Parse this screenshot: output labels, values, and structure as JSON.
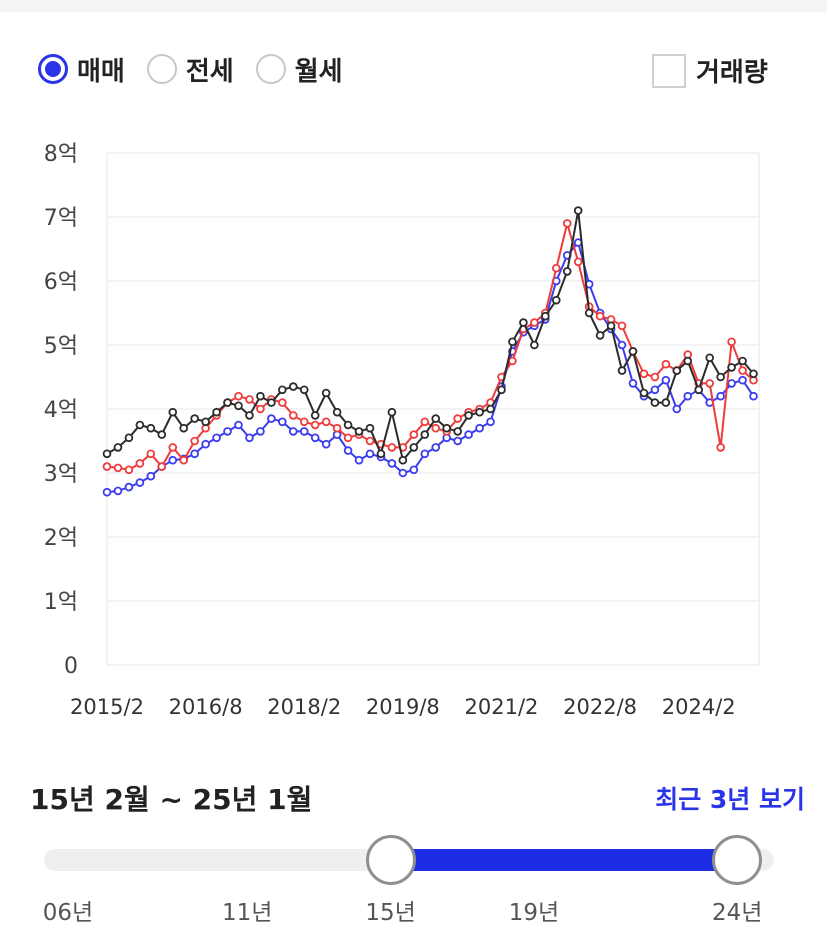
{
  "tabs": [
    {
      "label": "매매",
      "selected": true
    },
    {
      "label": "전세",
      "selected": false
    },
    {
      "label": "월세",
      "selected": false
    }
  ],
  "volume_toggle": {
    "label": "거래량",
    "checked": false
  },
  "colors": {
    "accent": "#2a34e8",
    "slider_fill": "#1d2de6",
    "series_blue": "#3b3bef",
    "series_red": "#ef3b3b",
    "series_black": "#2b2b2b"
  },
  "chart_data": {
    "type": "line",
    "title": "",
    "xlabel": "",
    "ylabel": "",
    "y_unit": "억",
    "ylim": [
      0,
      8
    ],
    "y_ticks": [
      0,
      1,
      2,
      3,
      4,
      5,
      6,
      7,
      8
    ],
    "y_tick_labels": [
      "0",
      "1억",
      "2억",
      "3억",
      "4억",
      "5억",
      "6억",
      "7억",
      "8억"
    ],
    "x_range": [
      "2015-02",
      "2025-01"
    ],
    "x_ticks": [
      "2015-02",
      "2016-08",
      "2018-02",
      "2019-08",
      "2021-02",
      "2022-08",
      "2024-02"
    ],
    "x_tick_labels": [
      "2015/2",
      "2016/8",
      "2018/2",
      "2019/8",
      "2021/2",
      "2022/8",
      "2024/2"
    ],
    "grid": true,
    "legend": "none",
    "series": [
      {
        "color": "#3b3bef",
        "points": [
          [
            "2015-02",
            2.7
          ],
          [
            "2015-04",
            2.72
          ],
          [
            "2015-06",
            2.78
          ],
          [
            "2015-08",
            2.85
          ],
          [
            "2015-10",
            2.95
          ],
          [
            "2015-12",
            3.1
          ],
          [
            "2016-02",
            3.2
          ],
          [
            "2016-04",
            3.22
          ],
          [
            "2016-06",
            3.3
          ],
          [
            "2016-08",
            3.45
          ],
          [
            "2016-10",
            3.55
          ],
          [
            "2016-12",
            3.65
          ],
          [
            "2017-02",
            3.75
          ],
          [
            "2017-04",
            3.55
          ],
          [
            "2017-06",
            3.65
          ],
          [
            "2017-08",
            3.85
          ],
          [
            "2017-10",
            3.8
          ],
          [
            "2017-12",
            3.65
          ],
          [
            "2018-02",
            3.65
          ],
          [
            "2018-04",
            3.55
          ],
          [
            "2018-06",
            3.45
          ],
          [
            "2018-08",
            3.6
          ],
          [
            "2018-10",
            3.35
          ],
          [
            "2018-12",
            3.2
          ],
          [
            "2019-02",
            3.3
          ],
          [
            "2019-04",
            3.25
          ],
          [
            "2019-06",
            3.15
          ],
          [
            "2019-08",
            3.0
          ],
          [
            "2019-10",
            3.05
          ],
          [
            "2019-12",
            3.3
          ],
          [
            "2020-02",
            3.4
          ],
          [
            "2020-04",
            3.55
          ],
          [
            "2020-06",
            3.5
          ],
          [
            "2020-08",
            3.6
          ],
          [
            "2020-10",
            3.7
          ],
          [
            "2020-12",
            3.8
          ],
          [
            "2021-02",
            4.35
          ],
          [
            "2021-04",
            4.9
          ],
          [
            "2021-06",
            5.2
          ],
          [
            "2021-08",
            5.3
          ],
          [
            "2021-10",
            5.4
          ],
          [
            "2021-12",
            6.0
          ],
          [
            "2022-02",
            6.4
          ],
          [
            "2022-04",
            6.6
          ],
          [
            "2022-06",
            5.95
          ],
          [
            "2022-08",
            5.5
          ],
          [
            "2022-10",
            5.25
          ],
          [
            "2022-12",
            5.0
          ],
          [
            "2023-02",
            4.4
          ],
          [
            "2023-04",
            4.2
          ],
          [
            "2023-06",
            4.3
          ],
          [
            "2023-08",
            4.45
          ],
          [
            "2023-10",
            4.0
          ],
          [
            "2023-12",
            4.2
          ],
          [
            "2024-02",
            4.3
          ],
          [
            "2024-04",
            4.1
          ],
          [
            "2024-06",
            4.2
          ],
          [
            "2024-08",
            4.4
          ],
          [
            "2024-10",
            4.45
          ],
          [
            "2024-12",
            4.2
          ]
        ]
      },
      {
        "color": "#ef3b3b",
        "points": [
          [
            "2015-02",
            3.1
          ],
          [
            "2015-04",
            3.08
          ],
          [
            "2015-06",
            3.05
          ],
          [
            "2015-08",
            3.15
          ],
          [
            "2015-10",
            3.3
          ],
          [
            "2015-12",
            3.1
          ],
          [
            "2016-02",
            3.4
          ],
          [
            "2016-04",
            3.2
          ],
          [
            "2016-06",
            3.5
          ],
          [
            "2016-08",
            3.7
          ],
          [
            "2016-10",
            3.9
          ],
          [
            "2016-12",
            4.1
          ],
          [
            "2017-02",
            4.2
          ],
          [
            "2017-04",
            4.15
          ],
          [
            "2017-06",
            4.0
          ],
          [
            "2017-08",
            4.15
          ],
          [
            "2017-10",
            4.1
          ],
          [
            "2017-12",
            3.9
          ],
          [
            "2018-02",
            3.8
          ],
          [
            "2018-04",
            3.75
          ],
          [
            "2018-06",
            3.8
          ],
          [
            "2018-08",
            3.7
          ],
          [
            "2018-10",
            3.55
          ],
          [
            "2018-12",
            3.6
          ],
          [
            "2019-02",
            3.5
          ],
          [
            "2019-04",
            3.45
          ],
          [
            "2019-06",
            3.4
          ],
          [
            "2019-08",
            3.4
          ],
          [
            "2019-10",
            3.6
          ],
          [
            "2019-12",
            3.8
          ],
          [
            "2020-02",
            3.7
          ],
          [
            "2020-04",
            3.65
          ],
          [
            "2020-06",
            3.85
          ],
          [
            "2020-08",
            3.95
          ],
          [
            "2020-10",
            4.0
          ],
          [
            "2020-12",
            4.1
          ],
          [
            "2021-02",
            4.5
          ],
          [
            "2021-04",
            4.75
          ],
          [
            "2021-06",
            5.25
          ],
          [
            "2021-08",
            5.35
          ],
          [
            "2021-10",
            5.5
          ],
          [
            "2021-12",
            6.2
          ],
          [
            "2022-02",
            6.9
          ],
          [
            "2022-04",
            6.3
          ],
          [
            "2022-06",
            5.6
          ],
          [
            "2022-08",
            5.45
          ],
          [
            "2022-10",
            5.4
          ],
          [
            "2022-12",
            5.3
          ],
          [
            "2023-02",
            4.9
          ],
          [
            "2023-04",
            4.55
          ],
          [
            "2023-06",
            4.5
          ],
          [
            "2023-08",
            4.7
          ],
          [
            "2023-10",
            4.6
          ],
          [
            "2023-12",
            4.85
          ],
          [
            "2024-02",
            4.4
          ],
          [
            "2024-04",
            4.4
          ],
          [
            "2024-06",
            3.4
          ],
          [
            "2024-08",
            5.05
          ],
          [
            "2024-10",
            4.6
          ],
          [
            "2024-12",
            4.45
          ]
        ]
      },
      {
        "color": "#2b2b2b",
        "points": [
          [
            "2015-02",
            3.3
          ],
          [
            "2015-04",
            3.4
          ],
          [
            "2015-06",
            3.55
          ],
          [
            "2015-08",
            3.75
          ],
          [
            "2015-10",
            3.7
          ],
          [
            "2015-12",
            3.6
          ],
          [
            "2016-02",
            3.95
          ],
          [
            "2016-04",
            3.7
          ],
          [
            "2016-06",
            3.85
          ],
          [
            "2016-08",
            3.8
          ],
          [
            "2016-10",
            3.95
          ],
          [
            "2016-12",
            4.1
          ],
          [
            "2017-02",
            4.05
          ],
          [
            "2017-04",
            3.9
          ],
          [
            "2017-06",
            4.2
          ],
          [
            "2017-08",
            4.1
          ],
          [
            "2017-10",
            4.3
          ],
          [
            "2017-12",
            4.35
          ],
          [
            "2018-02",
            4.3
          ],
          [
            "2018-04",
            3.9
          ],
          [
            "2018-06",
            4.25
          ],
          [
            "2018-08",
            3.95
          ],
          [
            "2018-10",
            3.75
          ],
          [
            "2018-12",
            3.65
          ],
          [
            "2019-02",
            3.7
          ],
          [
            "2019-04",
            3.3
          ],
          [
            "2019-06",
            3.95
          ],
          [
            "2019-08",
            3.2
          ],
          [
            "2019-10",
            3.4
          ],
          [
            "2019-12",
            3.6
          ],
          [
            "2020-02",
            3.85
          ],
          [
            "2020-04",
            3.7
          ],
          [
            "2020-06",
            3.65
          ],
          [
            "2020-08",
            3.9
          ],
          [
            "2020-10",
            3.95
          ],
          [
            "2020-12",
            4.0
          ],
          [
            "2021-02",
            4.3
          ],
          [
            "2021-04",
            5.05
          ],
          [
            "2021-06",
            5.35
          ],
          [
            "2021-08",
            5.0
          ],
          [
            "2021-10",
            5.45
          ],
          [
            "2021-12",
            5.7
          ],
          [
            "2022-02",
            6.15
          ],
          [
            "2022-04",
            7.1
          ],
          [
            "2022-06",
            5.5
          ],
          [
            "2022-08",
            5.15
          ],
          [
            "2022-10",
            5.3
          ],
          [
            "2022-12",
            4.6
          ],
          [
            "2023-02",
            4.9
          ],
          [
            "2023-04",
            4.25
          ],
          [
            "2023-06",
            4.1
          ],
          [
            "2023-08",
            4.1
          ],
          [
            "2023-10",
            4.6
          ],
          [
            "2023-12",
            4.75
          ],
          [
            "2024-02",
            4.3
          ],
          [
            "2024-04",
            4.8
          ],
          [
            "2024-06",
            4.5
          ],
          [
            "2024-08",
            4.65
          ],
          [
            "2024-10",
            4.75
          ],
          [
            "2024-12",
            4.55
          ]
        ]
      }
    ]
  },
  "period": {
    "label": "15년 2월 ~ 25년 1월"
  },
  "recent_link": {
    "label": "최근 3년 보기"
  },
  "slider": {
    "min_year": 2006,
    "max_year": 2025,
    "start_year": 2015,
    "end_year": 2024,
    "tick_labels": [
      {
        "year": 2006,
        "label": "06년"
      },
      {
        "year": 2011,
        "label": "11년"
      },
      {
        "year": 2015,
        "label": "15년"
      },
      {
        "year": 2019,
        "label": "19년"
      },
      {
        "year": 2024,
        "label": "24년"
      }
    ]
  }
}
